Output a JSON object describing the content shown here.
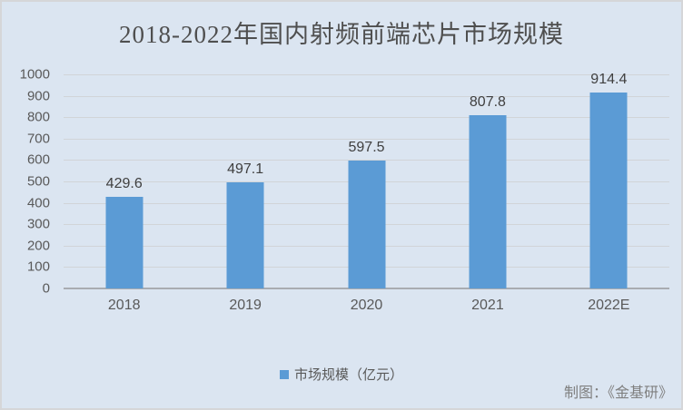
{
  "title": "2018-2022年国内射频前端芯片市场规模",
  "chart_data": {
    "type": "bar",
    "title": "2018-2022年国内射频前端芯片市场规模",
    "categories": [
      "2018",
      "2019",
      "2020",
      "2021",
      "2022E"
    ],
    "values": [
      429.6,
      497.1,
      597.5,
      807.8,
      914.4
    ],
    "value_labels": [
      "429.6",
      "497.1",
      "597.5",
      "807.8",
      "914.4"
    ],
    "series_name": "市场规模（亿元）",
    "xlabel": "",
    "ylabel": "",
    "ylim": [
      0,
      1000
    ],
    "ytick_step": 100,
    "yticks": [
      0,
      100,
      200,
      300,
      400,
      500,
      600,
      700,
      800,
      900,
      1000
    ],
    "grid": true,
    "legend_position": "bottom"
  },
  "legend": {
    "label": "市场规模（亿元）"
  },
  "credit": "制图：《金基研》",
  "colors": {
    "background": "#dbe5f1",
    "border": "#d5d6d8",
    "bar": "#5B9BD5",
    "grid": "#d1d4d8",
    "axis": "#a9acb1",
    "title_text": "#4f4f4f",
    "value_text": "#3f3f3f",
    "tick_text": "#595959",
    "credit_text": "#7f7f7f"
  }
}
